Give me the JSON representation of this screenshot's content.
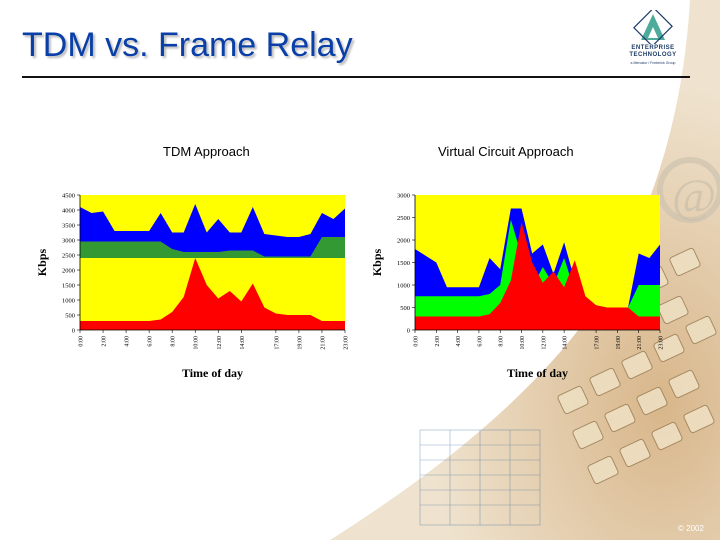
{
  "slide": {
    "title": "TDM vs. Frame Relay",
    "copyright": "© 2002"
  },
  "logo": {
    "line1": "ENTERPRISE",
    "line2": "TECHNOLOGY",
    "tagline": "a Mercator / Frederick Group"
  },
  "chart_data": [
    {
      "type": "area",
      "title": "TDM Approach",
      "xlabel": "Time of day",
      "ylabel": "Kbps",
      "ylim": [
        0,
        4500
      ],
      "yticks": [
        0,
        500,
        1000,
        1500,
        2000,
        2500,
        3000,
        3500,
        4000,
        4500
      ],
      "x": [
        "0:00",
        "1:00",
        "2:00",
        "3:00",
        "4:00",
        "5:00",
        "6:00",
        "7:00",
        "8:00",
        "9:00",
        "10:00",
        "11:00",
        "12:00",
        "13:00",
        "14:00",
        "15:00",
        "16:00",
        "17:00",
        "18:00",
        "19:00",
        "20:00",
        "21:00",
        "22:00",
        "23:00"
      ],
      "xtick_labels": [
        "0:00",
        "2:00",
        "4:00",
        "6:00",
        "8:00",
        "10:00",
        "12:00",
        "14:00",
        "17:00",
        "19:00",
        "21:00",
        "23:00"
      ],
      "stack": false,
      "background": "#ffff00",
      "colors": {
        "blue": "#0000ff",
        "green": "#339933",
        "red": "#ff0000",
        "bg": "#ffff00"
      },
      "series": [
        {
          "color": "#0000ff",
          "values": [
            4100,
            3900,
            3950,
            3300,
            3300,
            3300,
            3300,
            3900,
            3250,
            3250,
            4200,
            3250,
            3700,
            3250,
            3250,
            4100,
            3200,
            3150,
            3100,
            3100,
            3200,
            3900,
            3700,
            4050
          ]
        },
        {
          "color": "#339933",
          "values": [
            2950,
            2950,
            2950,
            2950,
            2950,
            2950,
            2950,
            2950,
            2700,
            2600,
            2600,
            2600,
            2600,
            2650,
            2650,
            2650,
            2450,
            2450,
            2450,
            2450,
            2450,
            3100,
            3100,
            3100
          ]
        },
        {
          "color": "#ffff00",
          "values": [
            2400,
            2400,
            2400,
            2400,
            2400,
            2400,
            2400,
            2400,
            2400,
            2400,
            2400,
            2400,
            2400,
            2400,
            2400,
            2400,
            2400,
            2400,
            2400,
            2400,
            2400,
            2400,
            2400,
            2400
          ]
        },
        {
          "color": "#ff0000",
          "values": [
            300,
            300,
            300,
            300,
            300,
            300,
            300,
            350,
            600,
            1100,
            2400,
            1500,
            1050,
            1300,
            950,
            1550,
            750,
            550,
            500,
            500,
            500,
            300,
            300,
            300
          ]
        }
      ]
    },
    {
      "type": "area",
      "title": "Virtual Circuit Approach",
      "xlabel": "Time of day",
      "ylabel": "Kbps",
      "ylim": [
        0,
        3000
      ],
      "yticks": [
        0,
        500,
        1000,
        1500,
        2000,
        2500,
        3000
      ],
      "x": [
        "0:00",
        "1:00",
        "2:00",
        "3:00",
        "4:00",
        "5:00",
        "6:00",
        "7:00",
        "8:00",
        "9:00",
        "10:00",
        "11:00",
        "12:00",
        "13:00",
        "14:00",
        "15:00",
        "16:00",
        "17:00",
        "18:00",
        "19:00",
        "20:00",
        "21:00",
        "22:00",
        "23:00"
      ],
      "xtick_labels": [
        "0:00",
        "2:00",
        "4:00",
        "6:00",
        "8:00",
        "10:00",
        "12:00",
        "14:00",
        "17:00",
        "19:00",
        "21:00",
        "23:00"
      ],
      "stack": false,
      "background": "#ffff00",
      "colors": {
        "blue": "#0000ff",
        "green": "#00ff00",
        "red": "#ff0000",
        "bg": "#ffff00"
      },
      "series": [
        {
          "color": "#0000ff",
          "values": [
            1800,
            1650,
            1500,
            950,
            950,
            950,
            950,
            1600,
            1350,
            2700,
            2700,
            1700,
            1900,
            1250,
            1950,
            1100,
            650,
            550,
            500,
            400,
            500,
            1700,
            1600,
            1900
          ]
        },
        {
          "color": "#00ff00",
          "values": [
            750,
            750,
            750,
            750,
            750,
            750,
            750,
            800,
            1000,
            2450,
            1650,
            950,
            1400,
            1000,
            1600,
            850,
            600,
            550,
            500,
            500,
            500,
            1000,
            1000,
            1000
          ]
        },
        {
          "color": "#ff0000",
          "values": [
            300,
            300,
            300,
            300,
            300,
            300,
            300,
            350,
            600,
            1100,
            2400,
            1500,
            1050,
            1300,
            950,
            1550,
            750,
            550,
            500,
            500,
            500,
            300,
            300,
            300
          ]
        }
      ]
    }
  ]
}
